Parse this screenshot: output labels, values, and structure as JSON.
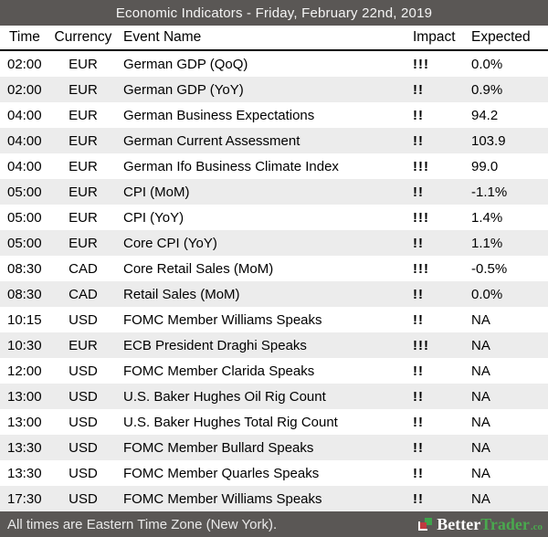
{
  "title_bar": {
    "title": "Economic Indicators - Friday, February 22nd, 2019"
  },
  "table": {
    "columns": [
      "Time",
      "Currency",
      "Event Name",
      "Impact",
      "Expected"
    ],
    "rows": [
      {
        "time": "02:00",
        "currency": "EUR",
        "event": "German GDP (QoQ)",
        "impact": "!!!",
        "expected": "0.0%"
      },
      {
        "time": "02:00",
        "currency": "EUR",
        "event": "German GDP (YoY)",
        "impact": "!!",
        "expected": "0.9%"
      },
      {
        "time": "04:00",
        "currency": "EUR",
        "event": "German Business Expectations",
        "impact": "!!",
        "expected": "94.2"
      },
      {
        "time": "04:00",
        "currency": "EUR",
        "event": "German Current Assessment",
        "impact": "!!",
        "expected": "103.9"
      },
      {
        "time": "04:00",
        "currency": "EUR",
        "event": "German Ifo Business Climate Index",
        "impact": "!!!",
        "expected": "99.0"
      },
      {
        "time": "05:00",
        "currency": "EUR",
        "event": "CPI (MoM)",
        "impact": "!!",
        "expected": "-1.1%"
      },
      {
        "time": "05:00",
        "currency": "EUR",
        "event": "CPI (YoY)",
        "impact": "!!!",
        "expected": "1.4%"
      },
      {
        "time": "05:00",
        "currency": "EUR",
        "event": "Core CPI (YoY)",
        "impact": "!!",
        "expected": "1.1%"
      },
      {
        "time": "08:30",
        "currency": "CAD",
        "event": "Core Retail Sales (MoM)",
        "impact": "!!!",
        "expected": "-0.5%"
      },
      {
        "time": "08:30",
        "currency": "CAD",
        "event": "Retail Sales (MoM)",
        "impact": "!!",
        "expected": "0.0%"
      },
      {
        "time": "10:15",
        "currency": "USD",
        "event": "FOMC Member Williams Speaks",
        "impact": "!!",
        "expected": "NA"
      },
      {
        "time": "10:30",
        "currency": "EUR",
        "event": "ECB President Draghi Speaks",
        "impact": "!!!",
        "expected": "NA"
      },
      {
        "time": "12:00",
        "currency": "USD",
        "event": "FOMC Member Clarida Speaks",
        "impact": "!!",
        "expected": "NA"
      },
      {
        "time": "13:00",
        "currency": "USD",
        "event": "U.S. Baker Hughes Oil Rig Count",
        "impact": "!!",
        "expected": "NA"
      },
      {
        "time": "13:00",
        "currency": "USD",
        "event": "U.S. Baker Hughes Total Rig Count",
        "impact": "!!",
        "expected": "NA"
      },
      {
        "time": "13:30",
        "currency": "USD",
        "event": "FOMC Member Bullard Speaks",
        "impact": "!!",
        "expected": "NA"
      },
      {
        "time": "13:30",
        "currency": "USD",
        "event": "FOMC Member Quarles Speaks",
        "impact": "!!",
        "expected": "NA"
      },
      {
        "time": "17:30",
        "currency": "USD",
        "event": "FOMC Member Williams Speaks",
        "impact": "!!",
        "expected": "NA"
      }
    ]
  },
  "footer": {
    "note": "All times are Eastern Time Zone (New York).",
    "brand": {
      "part1": "Better",
      "part2": "Trader",
      "suffix": ".co"
    }
  },
  "colors": {
    "bar_background": "#5a5755",
    "row_alternate": "#ececec",
    "brand_green": "#4aa94e",
    "brand_red": "#c03a40",
    "header_rule": "#000000"
  },
  "icons": {
    "logo": "bettertrader-bracket-squares"
  }
}
